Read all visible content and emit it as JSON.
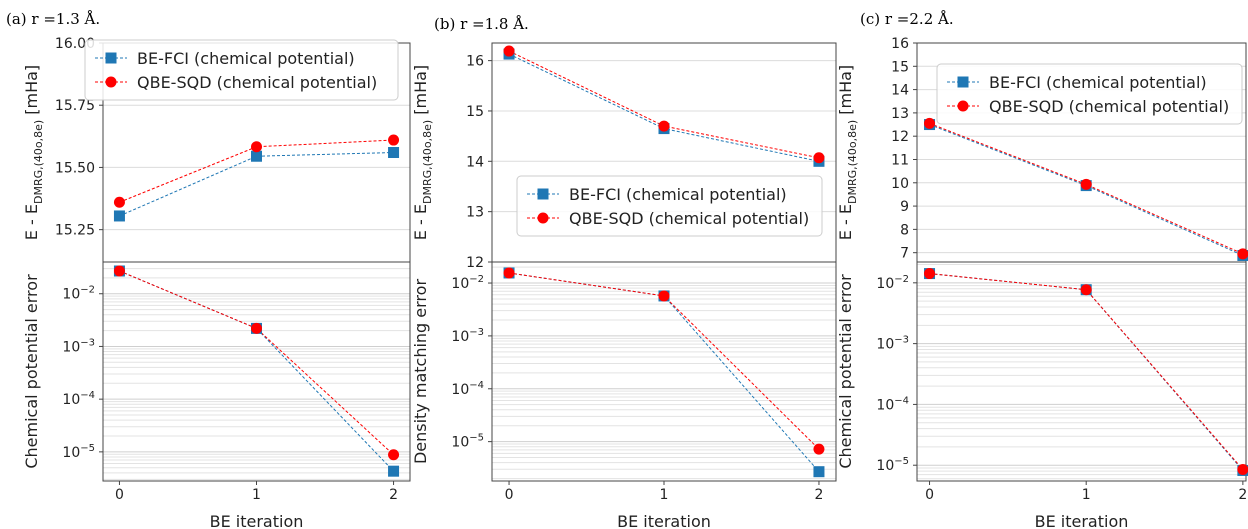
{
  "figure": {
    "panel_titles": [
      "(a) r =1.3 Å.",
      "(b) r =1.8 Å.",
      "(c) r =2.2 Å."
    ]
  },
  "colors": {
    "be_fci": "#1f77b4",
    "qbe_sqd": "#ff0000",
    "grid": "#dcdcdc"
  },
  "chart_data": [
    {
      "type": "line",
      "panel": "a",
      "subplot": "top",
      "title": "(a) r =1.3 Å.",
      "ylabel": "E - E_{DMRG,(40o,8e)} [mHa]",
      "xlabel": "",
      "x": [
        0,
        1,
        2
      ],
      "ylim": [
        15.12,
        16.0
      ],
      "yticks": [
        "15.00",
        "15.25",
        "15.50",
        "15.75",
        "16.00"
      ],
      "ytick_values": [
        15.0,
        15.25,
        15.5,
        15.75,
        16.0
      ],
      "grid": true,
      "legend": "top-center",
      "series": [
        {
          "name": "BE-FCI (chemical potential)",
          "values": [
            15.305,
            15.545,
            15.56
          ]
        },
        {
          "name": "QBE-SQD (chemical potential)",
          "values": [
            15.36,
            15.583,
            15.61
          ]
        }
      ]
    },
    {
      "type": "line",
      "panel": "a",
      "subplot": "bottom",
      "log_y": true,
      "ylabel": "Chemical potential error",
      "xlabel": "BE iteration",
      "x": [
        0,
        1,
        2
      ],
      "xticks": [
        "0",
        "1",
        "2"
      ],
      "ylim": [
        2.8e-06,
        0.04
      ],
      "ytick_exponents": [
        -5,
        -4,
        -3,
        -2
      ],
      "grid": true,
      "series": [
        {
          "name": "BE-FCI (chemical potential)",
          "values": [
            0.027,
            0.0022,
            4.3e-06
          ]
        },
        {
          "name": "QBE-SQD (chemical potential)",
          "values": [
            0.027,
            0.0022,
            8.8e-06
          ]
        }
      ]
    },
    {
      "type": "line",
      "panel": "b",
      "subplot": "top",
      "title": "(b) r =1.8 Å.",
      "ylabel": "E - E_{DMRG,(40o,8e)} [mHa]",
      "xlabel": "",
      "x": [
        0,
        1,
        2
      ],
      "ylim": [
        12.0,
        16.35
      ],
      "yticks": [
        "12",
        "13",
        "14",
        "15",
        "16"
      ],
      "ytick_values": [
        12,
        13,
        14,
        15,
        16
      ],
      "grid": true,
      "legend": "center-right",
      "series": [
        {
          "name": "BE-FCI (chemical potential)",
          "values": [
            16.13,
            14.65,
            14.0
          ]
        },
        {
          "name": "QBE-SQD (chemical potential)",
          "values": [
            16.19,
            14.7,
            14.07
          ]
        }
      ]
    },
    {
      "type": "line",
      "panel": "b",
      "subplot": "bottom",
      "log_y": true,
      "ylabel": "Density matching error",
      "xlabel": "BE iteration",
      "x": [
        0,
        1,
        2
      ],
      "xticks": [
        "0",
        "1",
        "2"
      ],
      "ylim": [
        1.8e-06,
        0.025
      ],
      "ytick_exponents": [
        -5,
        -4,
        -3,
        -2
      ],
      "grid": true,
      "series": [
        {
          "name": "BE-FCI (chemical potential)",
          "values": [
            0.0155,
            0.0057,
            2.7e-06
          ]
        },
        {
          "name": "QBE-SQD (chemical potential)",
          "values": [
            0.0155,
            0.0057,
            7.2e-06
          ]
        }
      ]
    },
    {
      "type": "line",
      "panel": "c",
      "subplot": "top",
      "title": "(c) r =2.2 Å.",
      "ylabel": "E - E_{DMRG,(40o,8e)} [mHa]",
      "xlabel": "",
      "x": [
        0,
        1,
        2
      ],
      "ylim": [
        6.6,
        16.0
      ],
      "yticks": [
        "7",
        "8",
        "9",
        "10",
        "11",
        "12",
        "13",
        "14",
        "15",
        "16"
      ],
      "ytick_values": [
        7,
        8,
        9,
        10,
        11,
        12,
        13,
        14,
        15,
        16
      ],
      "grid": true,
      "legend": "top-right",
      "series": [
        {
          "name": "BE-FCI (chemical potential)",
          "values": [
            12.5,
            9.88,
            6.88
          ]
        },
        {
          "name": "QBE-SQD (chemical potential)",
          "values": [
            12.55,
            9.93,
            6.95
          ]
        }
      ]
    },
    {
      "type": "line",
      "panel": "c",
      "subplot": "bottom",
      "log_y": true,
      "ylabel": "Chemical potential error",
      "xlabel": "BE iteration",
      "x": [
        0,
        1,
        2
      ],
      "xticks": [
        "0",
        "1",
        "2"
      ],
      "ylim": [
        5.5e-06,
        0.022
      ],
      "ytick_exponents": [
        -5,
        -4,
        -3,
        -2
      ],
      "grid": true,
      "series": [
        {
          "name": "BE-FCI (chemical potential)",
          "values": [
            0.0142,
            0.0077,
            8.2e-06
          ]
        },
        {
          "name": "QBE-SQD (chemical potential)",
          "values": [
            0.0142,
            0.0077,
            8.5e-06
          ]
        }
      ]
    }
  ]
}
